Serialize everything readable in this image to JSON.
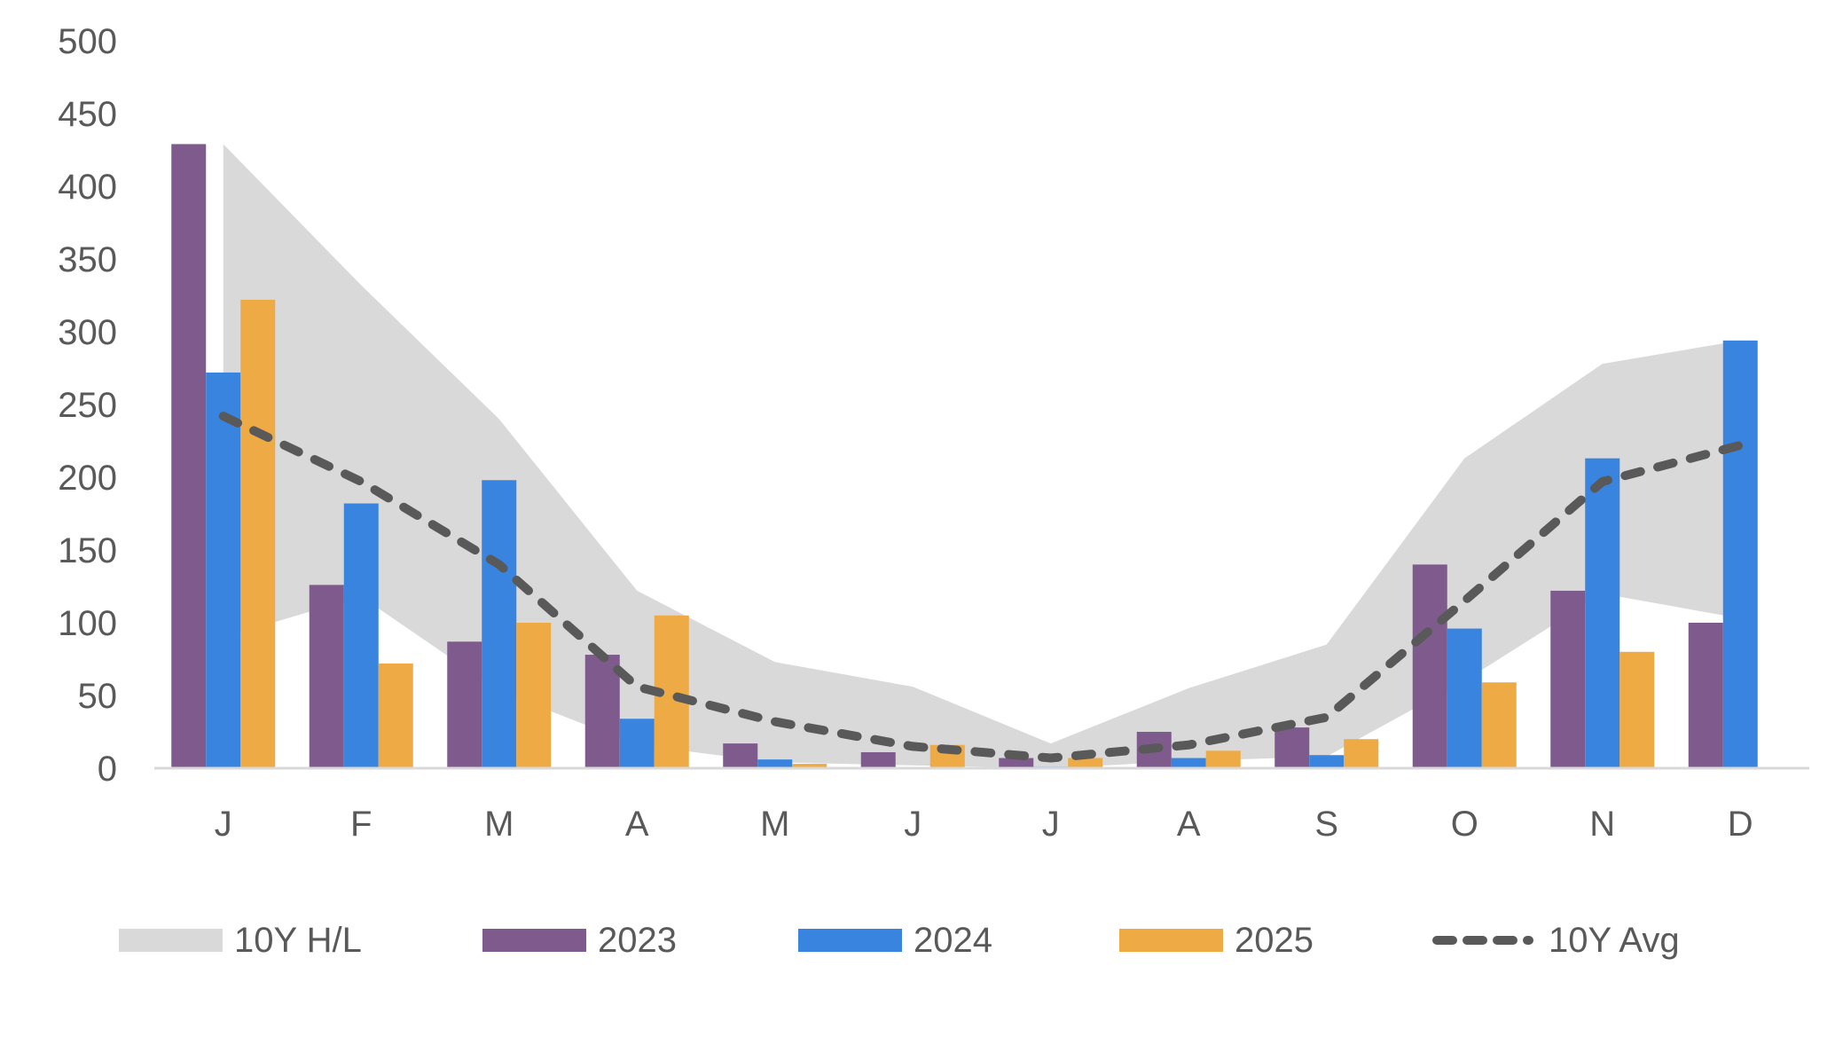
{
  "chart_data": {
    "type": "bar",
    "title": "",
    "xlabel": "",
    "ylabel": "",
    "ylim": [
      0,
      500
    ],
    "yticks": [
      0,
      50,
      100,
      150,
      200,
      250,
      300,
      350,
      400,
      450,
      500
    ],
    "grid": false,
    "legend_position": "bottom",
    "categories": [
      "J",
      "F",
      "M",
      "A",
      "M",
      "J",
      "J",
      "A",
      "S",
      "O",
      "N",
      "D"
    ],
    "band": {
      "name": "10Y H/L",
      "color": "#d9d9d9",
      "high": [
        429,
        332,
        240,
        122,
        73,
        56,
        17,
        55,
        85,
        213,
        278,
        294
      ],
      "low": [
        90,
        118,
        53,
        16,
        4,
        2,
        0,
        5,
        8,
        60,
        120,
        103
      ]
    },
    "series": [
      {
        "name": "2023",
        "type": "bar",
        "color": "#7f5a8c",
        "values": [
          429,
          126,
          87,
          78,
          17,
          11,
          7,
          25,
          28,
          140,
          122,
          100
        ]
      },
      {
        "name": "2024",
        "type": "bar",
        "color": "#3884df",
        "values": [
          272,
          182,
          198,
          34,
          6,
          0,
          1,
          7,
          9,
          96,
          213,
          294
        ]
      },
      {
        "name": "2025",
        "type": "bar",
        "color": "#eeaa45",
        "values": [
          322,
          72,
          100,
          105,
          3,
          16,
          7,
          12,
          20,
          59,
          80,
          null
        ]
      },
      {
        "name": "10Y Avg",
        "type": "line",
        "style": "dashed",
        "color": "#595959",
        "values": [
          242,
          197,
          140,
          56,
          32,
          15,
          7,
          16,
          35,
          115,
          197,
          222
        ]
      }
    ]
  }
}
